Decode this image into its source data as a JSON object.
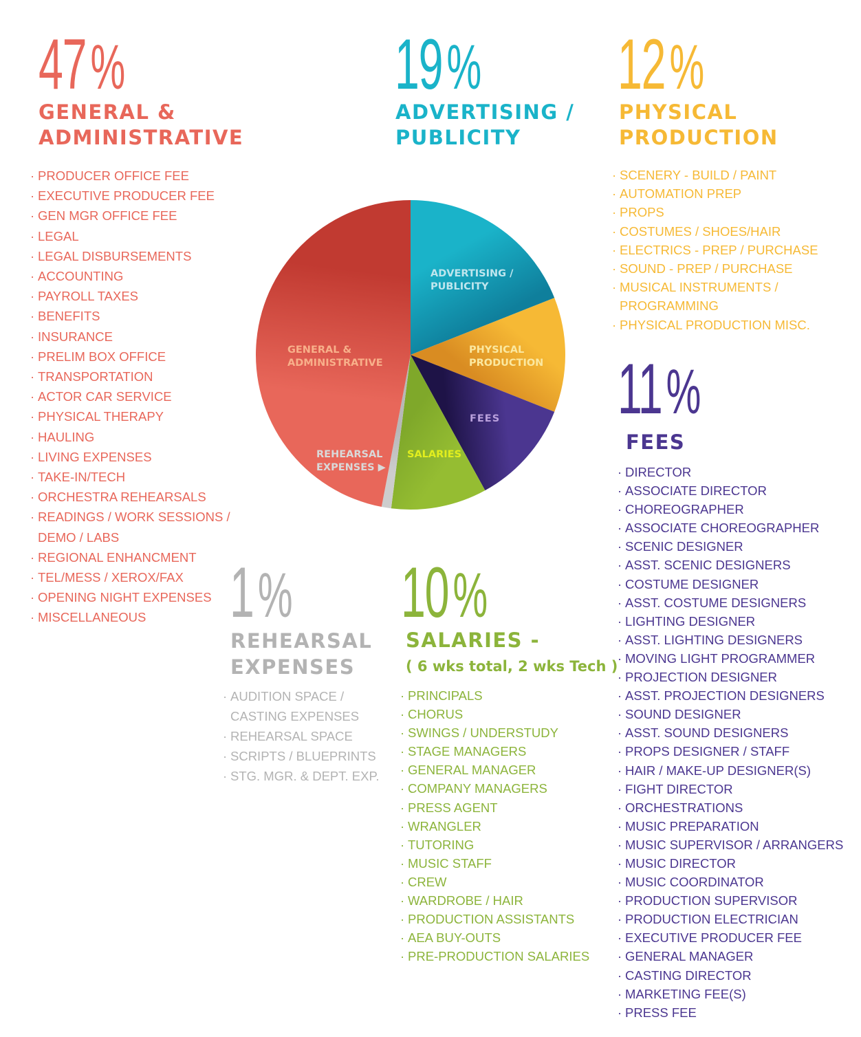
{
  "chart_data": {
    "type": "pie",
    "title": "",
    "slices": [
      {
        "label": "ADVERTISING /\nPUBLICITY",
        "value": 19,
        "color": "#1ab3c9",
        "dark": "#0f7f9c"
      },
      {
        "label": "PHYSICAL\nPRODUCTION",
        "value": 12,
        "color": "#f6b935",
        "dark": "#d98c22"
      },
      {
        "label": "FEES",
        "value": 11,
        "color": "#4b3690",
        "dark": "#1e1347"
      },
      {
        "label": "SALARIES",
        "value": 10,
        "color": "#95bd32",
        "dark": "#7fa82a"
      },
      {
        "label": "REHEARSAL\nEXPENSES ▶",
        "value": 1,
        "color": "#cdcdcd",
        "dark": "#b8b8b8"
      },
      {
        "label": "GENERAL &\nADMINISTRATIVE",
        "value": 47,
        "color": "#e8675a",
        "dark": "#c13a31"
      }
    ],
    "label_colors": [
      "#bfe6ee",
      "#fbe8a0",
      "#b9a0dc",
      "#e2ee1e",
      "#d9d9d9",
      "#f8b08a"
    ]
  },
  "sections": {
    "ga": {
      "pct": "47",
      "sign": "%",
      "title": "GENERAL &\nADMINISTRATIVE",
      "items": [
        "PRODUCER OFFICE FEE",
        "EXECUTIVE PRODUCER FEE",
        "GEN MGR OFFICE FEE",
        "LEGAL",
        "LEGAL DISBURSEMENTS",
        "ACCOUNTING",
        "PAYROLL TAXES",
        "BENEFITS",
        "INSURANCE",
        "PRELIM BOX OFFICE",
        "TRANSPORTATION",
        "ACTOR CAR SERVICE",
        "PHYSICAL THERAPY",
        "HAULING",
        "LIVING EXPENSES",
        "TAKE-IN/TECH",
        "ORCHESTRA REHEARSALS",
        "READINGS / WORK SESSIONS /\nDEMO / LABS",
        "REGIONAL ENHANCMENT",
        "TEL/MESS / XEROX/FAX",
        "OPENING NIGHT EXPENSES",
        "MISCELLANEOUS"
      ]
    },
    "adv": {
      "pct": "19",
      "sign": "%",
      "title": "ADVERTISING /\nPUBLICITY"
    },
    "phys": {
      "pct": "12",
      "sign": "%",
      "title": "PHYSICAL\nPRODUCTION",
      "items": [
        "SCENERY - BUILD / PAINT",
        "AUTOMATION PREP",
        "PROPS",
        "COSTUMES / SHOES/HAIR",
        "ELECTRICS - PREP / PURCHASE",
        "SOUND - PREP / PURCHASE",
        "MUSICAL INSTRUMENTS /\nPROGRAMMING",
        "PHYSICAL PRODUCTION MISC."
      ]
    },
    "fees": {
      "pct": "11",
      "sign": "%",
      "title": "FEES",
      "items": [
        "DIRECTOR",
        "ASSOCIATE DIRECTOR",
        "CHOREOGRAPHER",
        "ASSOCIATE CHOREOGRAPHER",
        "SCENIC DESIGNER",
        "ASST. SCENIC DESIGNERS",
        "COSTUME DESIGNER",
        "ASST. COSTUME DESIGNERS",
        "LIGHTING DESIGNER",
        "ASST. LIGHTING DESIGNERS",
        "MOVING LIGHT PROGRAMMER",
        "PROJECTION DESIGNER",
        "ASST. PROJECTION DESIGNERS",
        "SOUND DESIGNER",
        "ASST. SOUND DESIGNERS",
        "PROPS DESIGNER / STAFF",
        "HAIR / MAKE-UP DESIGNER(S)",
        "FIGHT DIRECTOR",
        "ORCHESTRATIONS",
        "MUSIC PREPARATION",
        "MUSIC SUPERVISOR / ARRANGERS",
        "MUSIC DIRECTOR",
        "MUSIC COORDINATOR",
        "PRODUCTION SUPERVISOR",
        "PRODUCTION ELECTRICIAN",
        "EXECUTIVE PRODUCER FEE",
        "GENERAL MANAGER",
        "CASTING DIRECTOR",
        "MARKETING FEE(S)",
        "PRESS FEE"
      ]
    },
    "reh": {
      "pct": "1",
      "sign": "%",
      "title": "REHEARSAL\nEXPENSES",
      "items": [
        "AUDITION SPACE /\nCASTING EXPENSES",
        "REHEARSAL SPACE",
        "SCRIPTS / BLUEPRINTS",
        "STG. MGR. & DEPT. EXP."
      ]
    },
    "sal": {
      "pct": "10",
      "sign": "%",
      "title": "SALARIES -",
      "subtitle": "( 6 wks total, 2 wks Tech )",
      "items": [
        "PRINCIPALS",
        "CHORUS",
        "SWINGS / UNDERSTUDY",
        "STAGE MANAGERS",
        "GENERAL MANAGER",
        "COMPANY MANAGERS",
        "PRESS AGENT",
        "WRANGLER",
        "TUTORING",
        "MUSIC STAFF",
        "CREW",
        "WARDROBE / HAIR",
        "PRODUCTION ASSISTANTS",
        "AEA BUY-OUTS",
        "PRE-PRODUCTION SALARIES"
      ]
    }
  }
}
